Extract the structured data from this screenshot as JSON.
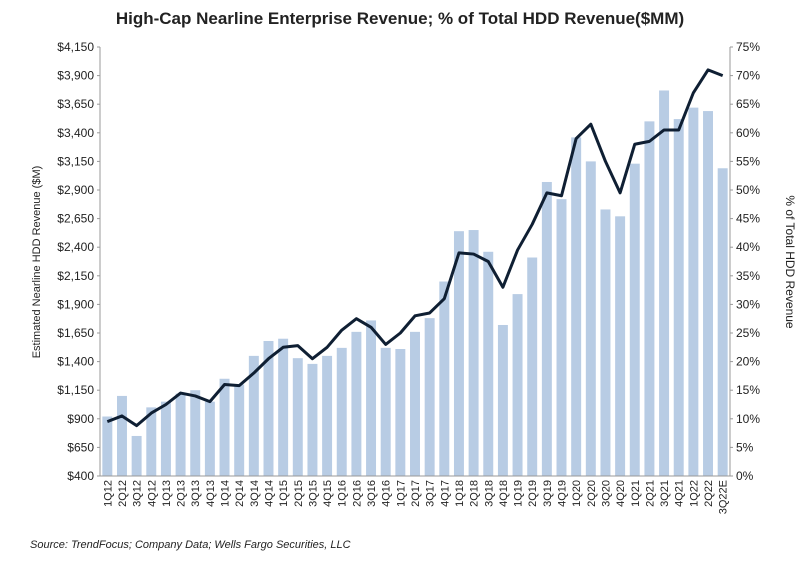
{
  "chart_data": {
    "type": "bar_line",
    "title": "High-Cap Nearline Enterprise Revenue; % of Total HDD Revenue($MM)",
    "y_label": "Estimated Nearline HDD Revenue ($M)",
    "y2_label": "% of Total HDD Revenue",
    "source": "Source:  TrendFocus; Company Data; Wells Fargo Securities, LLC",
    "categories": [
      "1Q12",
      "2Q12",
      "3Q12",
      "4Q12",
      "1Q13",
      "2Q13",
      "3Q13",
      "4Q13",
      "1Q14",
      "2Q14",
      "3Q14",
      "4Q14",
      "1Q15",
      "2Q15",
      "3Q15",
      "4Q15",
      "1Q16",
      "2Q16",
      "3Q16",
      "4Q16",
      "1Q17",
      "2Q17",
      "3Q17",
      "4Q17",
      "1Q18",
      "2Q18",
      "3Q18",
      "4Q18",
      "1Q19",
      "2Q19",
      "3Q19",
      "4Q19",
      "1Q20",
      "2Q20",
      "3Q20",
      "4Q20",
      "1Q21",
      "2Q21",
      "3Q21",
      "4Q21",
      "1Q22",
      "2Q22",
      "3Q22E"
    ],
    "series": [
      {
        "name": "Revenue",
        "color": "#b8cce4",
        "values": [
          920,
          1100,
          750,
          1000,
          1050,
          1120,
          1150,
          1050,
          1250,
          1200,
          1450,
          1580,
          1600,
          1430,
          1380,
          1450,
          1520,
          1660,
          1760,
          1520,
          1510,
          1660,
          1780,
          2100,
          2540,
          2550,
          2360,
          1720,
          1990,
          2310,
          2970,
          2820,
          3360,
          3150,
          2730,
          2670,
          3130,
          3500,
          3770,
          3520,
          3620,
          3590,
          3090
        ]
      },
      {
        "name": "% of Total",
        "color": "#0f1f33",
        "axis": "y2",
        "values": [
          9.5,
          10.5,
          8.8,
          11,
          12.5,
          14.5,
          14,
          13,
          16,
          15.8,
          18,
          20.5,
          22.5,
          22.8,
          20.5,
          22.5,
          25.5,
          27.5,
          26,
          23,
          25,
          28,
          28.5,
          31,
          39,
          38.8,
          37.5,
          33,
          39.5,
          44,
          49.5,
          49,
          59,
          61.5,
          55,
          49.5,
          58,
          58.5,
          60.5,
          60.5,
          67,
          71,
          70
        ]
      }
    ],
    "ylim": [
      400,
      4150
    ],
    "yticks": [
      {
        "value": 400,
        "label": "$400"
      },
      {
        "value": 650,
        "label": "$650"
      },
      {
        "value": 900,
        "label": "$900"
      },
      {
        "value": 1150,
        "label": "$1,150"
      },
      {
        "value": 1400,
        "label": "$1,400"
      },
      {
        "value": 1650,
        "label": "$1,650"
      },
      {
        "value": 1900,
        "label": "$1,900"
      },
      {
        "value": 2150,
        "label": "$2,150"
      },
      {
        "value": 2400,
        "label": "$2,400"
      },
      {
        "value": 2650,
        "label": "$2,650"
      },
      {
        "value": 2900,
        "label": "$2,900"
      },
      {
        "value": 3150,
        "label": "$3,150"
      },
      {
        "value": 3400,
        "label": "$3,400"
      },
      {
        "value": 3650,
        "label": "$3,650"
      },
      {
        "value": 3900,
        "label": "$3,900"
      },
      {
        "value": 4150,
        "label": "$4,150"
      }
    ],
    "y2lim": [
      0,
      75
    ],
    "y2ticks": [
      {
        "value": 0,
        "label": "0%"
      },
      {
        "value": 5,
        "label": "5%"
      },
      {
        "value": 10,
        "label": "10%"
      },
      {
        "value": 15,
        "label": "15%"
      },
      {
        "value": 20,
        "label": "20%"
      },
      {
        "value": 25,
        "label": "25%"
      },
      {
        "value": 30,
        "label": "30%"
      },
      {
        "value": 35,
        "label": "35%"
      },
      {
        "value": 40,
        "label": "40%"
      },
      {
        "value": 45,
        "label": "45%"
      },
      {
        "value": 50,
        "label": "50%"
      },
      {
        "value": 55,
        "label": "55%"
      },
      {
        "value": 60,
        "label": "60%"
      },
      {
        "value": 65,
        "label": "65%"
      },
      {
        "value": 70,
        "label": "70%"
      },
      {
        "value": 75,
        "label": "75%"
      }
    ]
  }
}
